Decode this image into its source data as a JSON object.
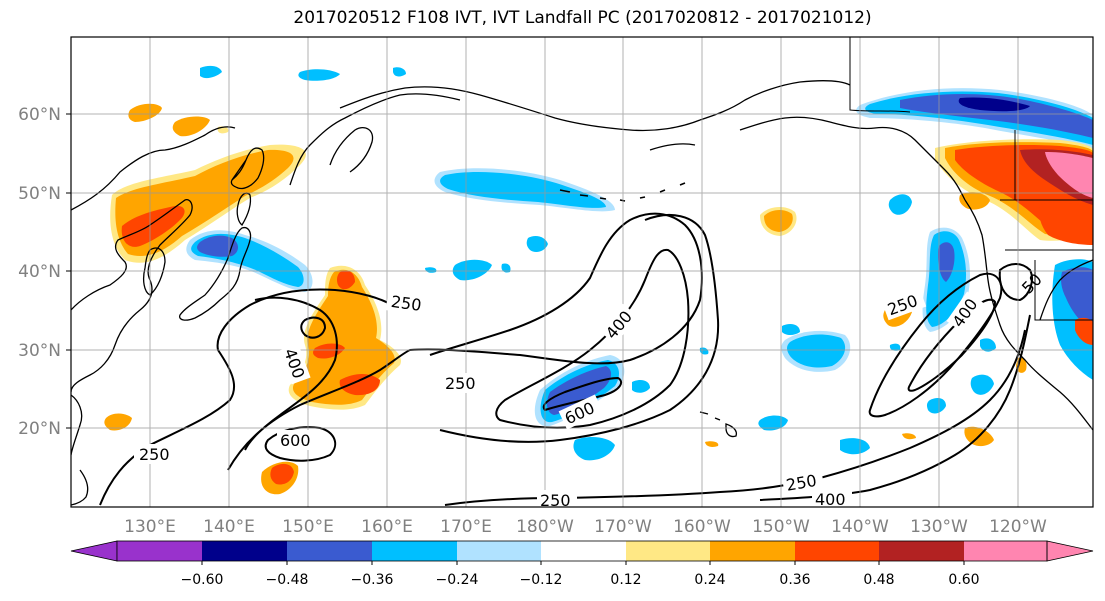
{
  "title": "2017020512 F108 IVT, IVT Landfall PC (2017020812 - 2017021012)",
  "lat_labels": [
    "60°N",
    "50°N",
    "40°N",
    "30°N",
    "20°N"
  ],
  "lon_labels": [
    "130°E",
    "140°E",
    "150°E",
    "160°E",
    "170°E",
    "180°W",
    "170°W",
    "160°W",
    "150°W",
    "140°W",
    "130°W",
    "120°W"
  ],
  "colorbar": {
    "tick_labels": [
      "−0.60",
      "−0.48",
      "−0.36",
      "−0.24",
      "−0.12",
      "0.12",
      "0.24",
      "0.36",
      "0.48",
      "0.60"
    ],
    "colors": [
      "#9932CC",
      "#00008B",
      "#3A5BD0",
      "#00BFFF",
      "#B0E2FF",
      "#FFFFFF",
      "#FFE885",
      "#FFA500",
      "#FF4500",
      "#B22222",
      "#FF85B0"
    ]
  },
  "contour_labels": [
    "250",
    "250",
    "250",
    "250",
    "250",
    "250",
    "400",
    "400",
    "400",
    "400",
    "600",
    "600",
    "50"
  ],
  "palette": {
    "purple": "#9932CC",
    "navy": "#00008B",
    "blue": "#3A5BD0",
    "cyan": "#00BFFF",
    "lightblue": "#B0E2FF",
    "yellow": "#FFE885",
    "orange": "#FFA500",
    "redorange": "#FF4500",
    "darkred": "#B22222",
    "pink": "#FF85B0"
  }
}
